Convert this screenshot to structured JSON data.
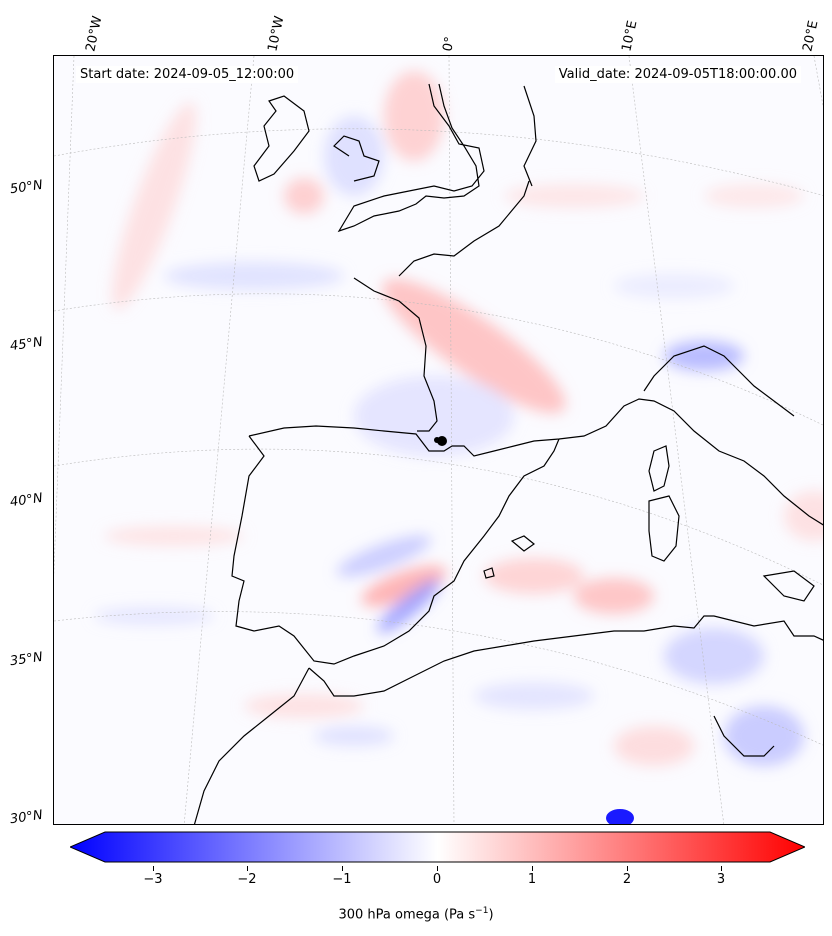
{
  "header": {
    "start_date": "Start date: 2024-09-05_12:00:00",
    "valid_date": "Valid_date: 2024-09-05T18:00:00.00"
  },
  "axes": {
    "lon_labels": [
      "20°W",
      "10°W",
      "0°",
      "10°E",
      "20°E"
    ],
    "lat_labels": [
      "50°N",
      "45°N",
      "40°N",
      "35°N",
      "30°N"
    ]
  },
  "colorbar": {
    "label": "300 hPa omega (Pa s",
    "label_sup": "−1",
    "label_end": ")",
    "ticks": [
      "−3",
      "−2",
      "−1",
      "0",
      "1",
      "2",
      "3"
    ],
    "tick_values": [
      -3,
      -2,
      -1,
      0,
      1,
      2,
      3
    ],
    "range": [
      -3.6,
      3.6
    ],
    "colors": {
      "low": "#0000ff",
      "mid": "#ffffff",
      "high": "#ff0000"
    }
  },
  "map": {
    "field": "300 hPa omega",
    "colormap": "bwr",
    "gridlines": true,
    "coastline_color": "#000000",
    "marker": "black dot near 1°E, 41.5°N"
  }
}
